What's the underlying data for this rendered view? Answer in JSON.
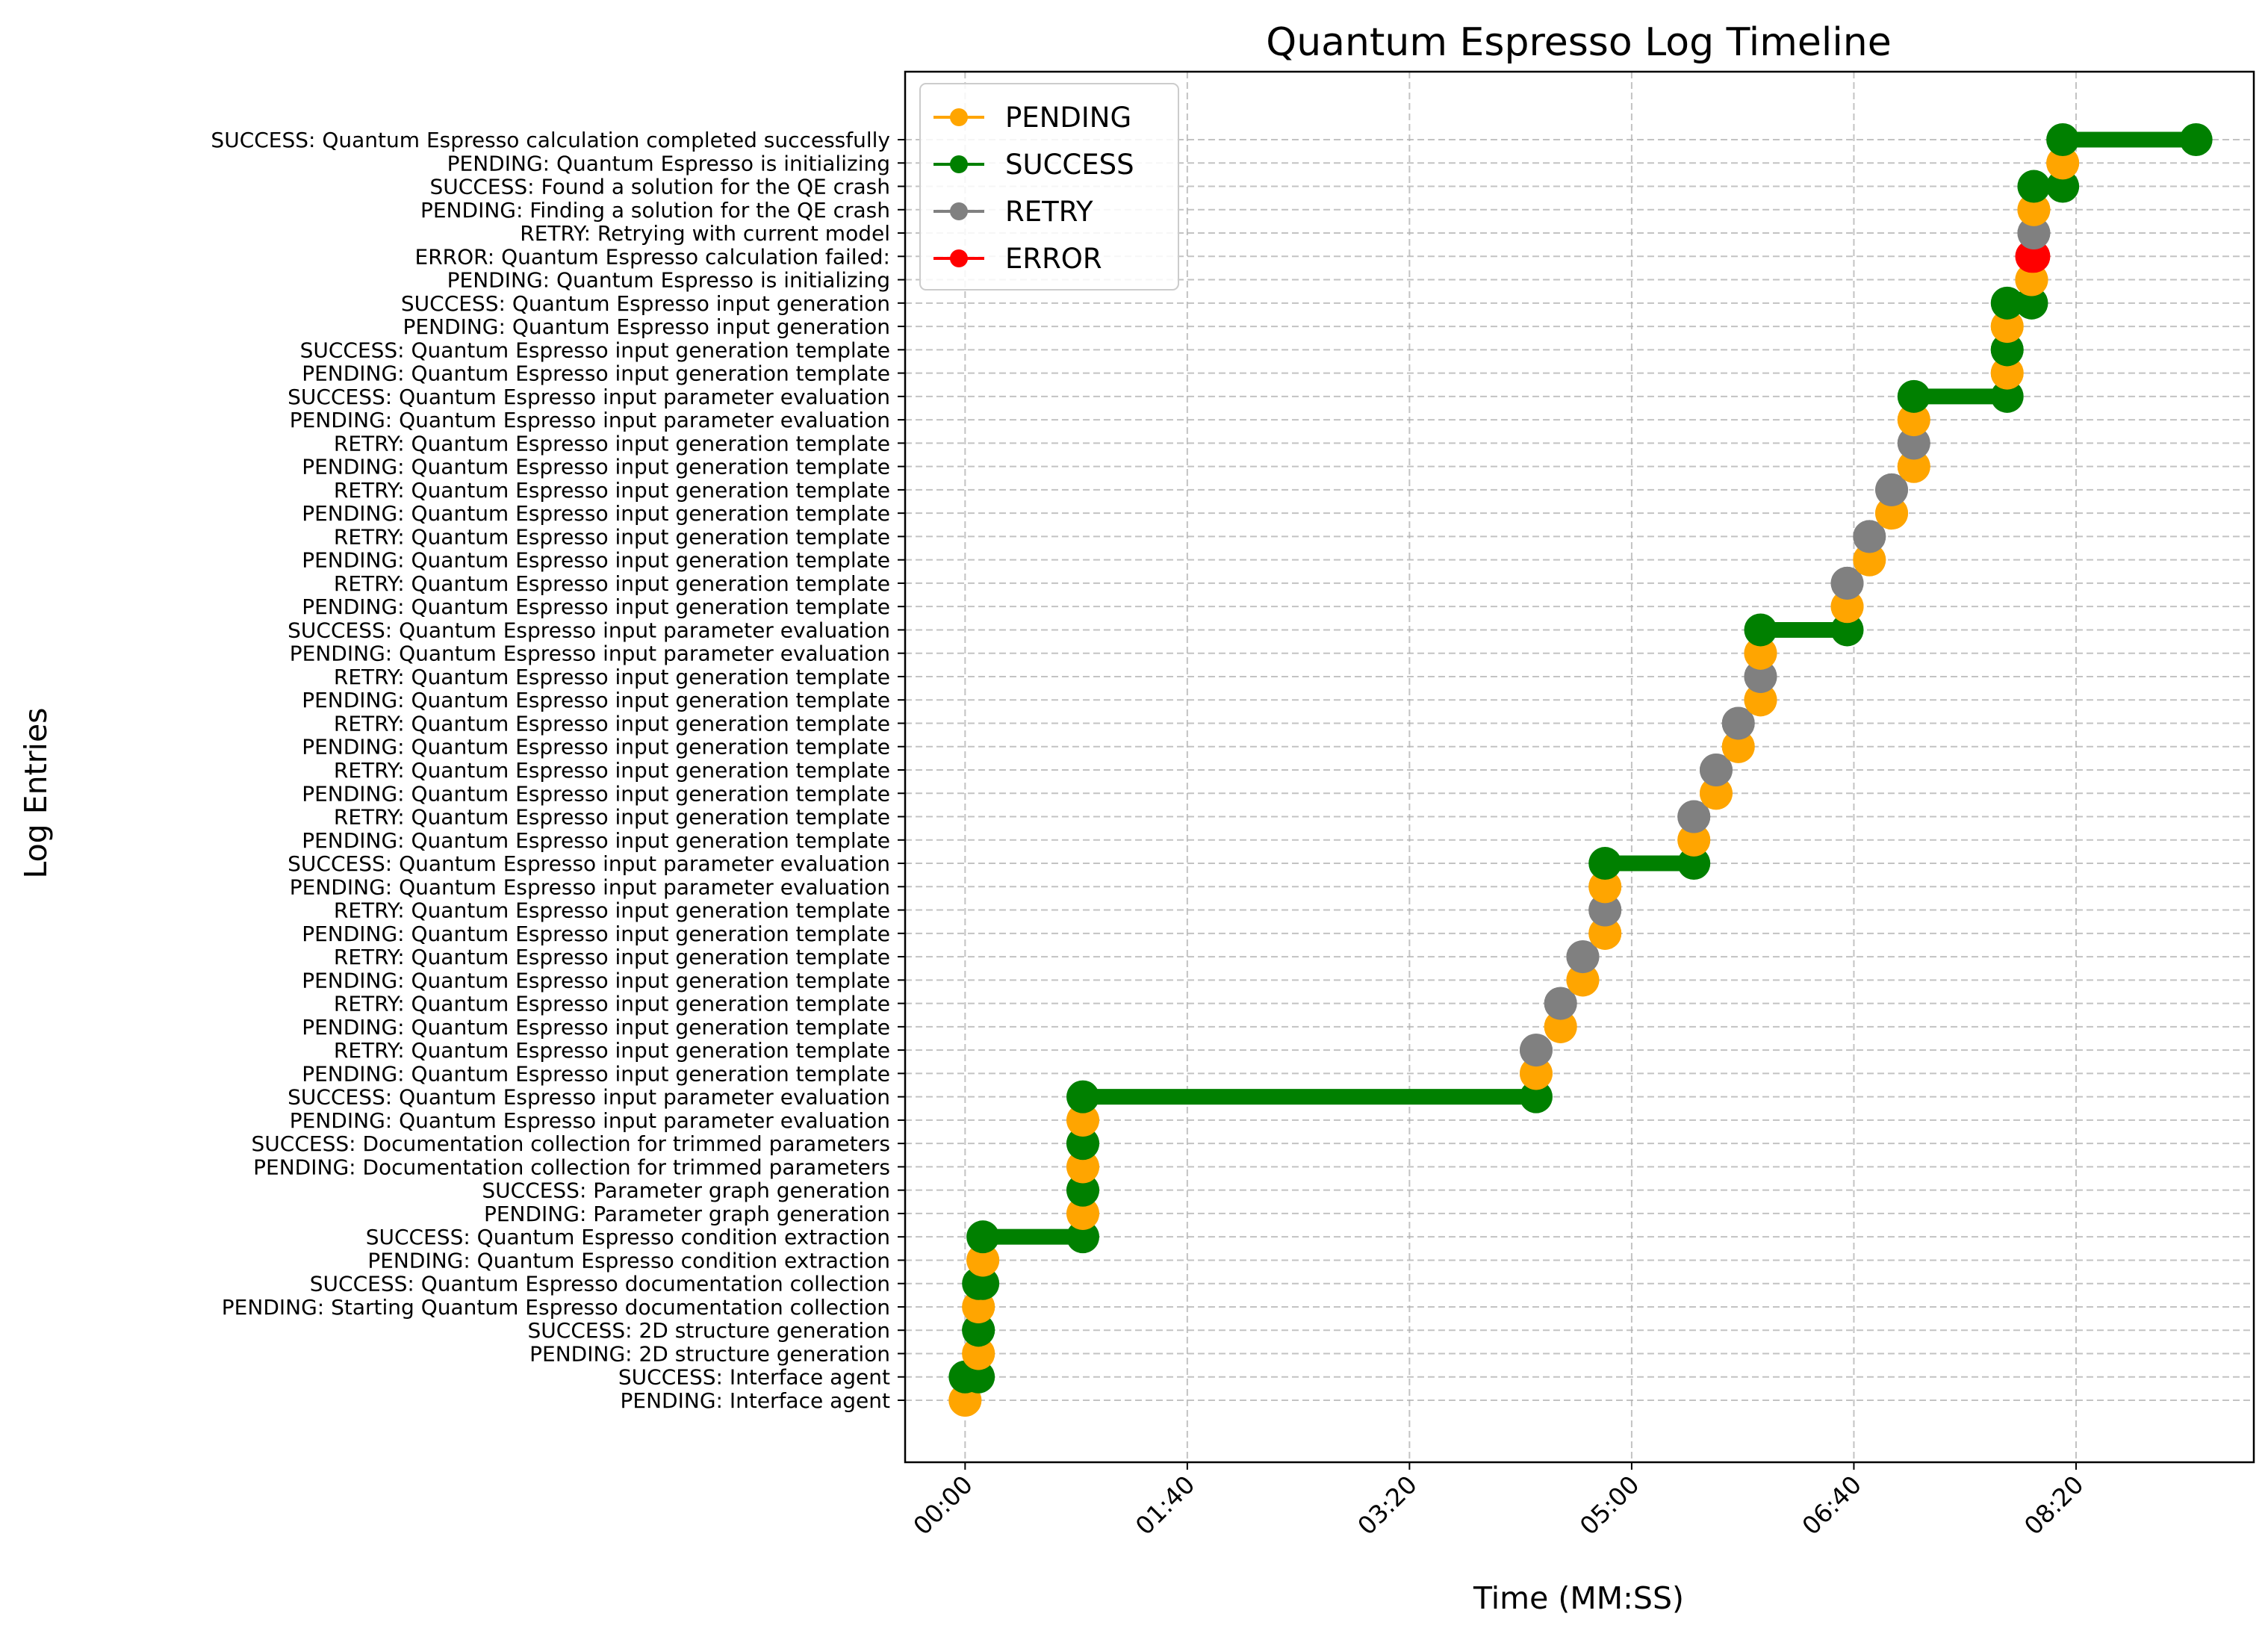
{
  "chart_data": {
    "type": "line",
    "title": "Quantum Espresso Log Timeline",
    "xlabel": "Time (MM:SS)",
    "ylabel": "Log Entries",
    "xlim": [
      -27,
      580
    ],
    "x_ticks": [
      {
        "value": 0,
        "label": "00:00"
      },
      {
        "value": 100,
        "label": "01:40"
      },
      {
        "value": 200,
        "label": "03:20"
      },
      {
        "value": 300,
        "label": "05:00"
      },
      {
        "value": 400,
        "label": "06:40"
      },
      {
        "value": 500,
        "label": "08:20"
      }
    ],
    "grid": true,
    "legend_position": "top-left",
    "statuses": [
      "PENDING",
      "SUCCESS",
      "RETRY",
      "ERROR"
    ],
    "colors": {
      "PENDING": "#ffa500",
      "SUCCESS": "#008000",
      "RETRY": "#808080",
      "ERROR": "#ff0000"
    },
    "legend": [
      {
        "label": "PENDING",
        "color": "#ffa500"
      },
      {
        "label": "SUCCESS",
        "color": "#008000"
      },
      {
        "label": "RETRY",
        "color": "#808080"
      },
      {
        "label": "ERROR",
        "color": "#ff0000"
      }
    ],
    "entries": [
      {
        "label": "PENDING: Interface agent",
        "status": "PENDING",
        "start": 0,
        "end": 0
      },
      {
        "label": "SUCCESS: Interface agent",
        "status": "SUCCESS",
        "start": 0,
        "end": 6
      },
      {
        "label": "PENDING: 2D structure generation",
        "status": "PENDING",
        "start": 6,
        "end": 6
      },
      {
        "label": "SUCCESS: 2D structure generation",
        "status": "SUCCESS",
        "start": 6,
        "end": 6
      },
      {
        "label": "PENDING: Starting Quantum Espresso documentation collection",
        "status": "PENDING",
        "start": 6,
        "end": 6
      },
      {
        "label": "SUCCESS: Quantum Espresso documentation collection",
        "status": "SUCCESS",
        "start": 6,
        "end": 8
      },
      {
        "label": "PENDING: Quantum Espresso condition extraction",
        "status": "PENDING",
        "start": 8,
        "end": 8
      },
      {
        "label": "SUCCESS: Quantum Espresso condition extraction",
        "status": "SUCCESS",
        "start": 8,
        "end": 53
      },
      {
        "label": "PENDING: Parameter graph generation",
        "status": "PENDING",
        "start": 53,
        "end": 53
      },
      {
        "label": "SUCCESS: Parameter graph generation",
        "status": "SUCCESS",
        "start": 53,
        "end": 53
      },
      {
        "label": "PENDING: Documentation collection for trimmed parameters",
        "status": "PENDING",
        "start": 53,
        "end": 53
      },
      {
        "label": "SUCCESS: Documentation collection for trimmed parameters",
        "status": "SUCCESS",
        "start": 53,
        "end": 53
      },
      {
        "label": "PENDING: Quantum Espresso input parameter evaluation",
        "status": "PENDING",
        "start": 53,
        "end": 53
      },
      {
        "label": "SUCCESS: Quantum Espresso input parameter evaluation",
        "status": "SUCCESS",
        "start": 53,
        "end": 257
      },
      {
        "label": "PENDING: Quantum Espresso input generation template",
        "status": "PENDING",
        "start": 257,
        "end": 257
      },
      {
        "label": "RETRY: Quantum Espresso input generation template",
        "status": "RETRY",
        "start": 257,
        "end": 257
      },
      {
        "label": "PENDING: Quantum Espresso input generation template",
        "status": "PENDING",
        "start": 268,
        "end": 268
      },
      {
        "label": "RETRY: Quantum Espresso input generation template",
        "status": "RETRY",
        "start": 268,
        "end": 268
      },
      {
        "label": "PENDING: Quantum Espresso input generation template",
        "status": "PENDING",
        "start": 278,
        "end": 278
      },
      {
        "label": "RETRY: Quantum Espresso input generation template",
        "status": "RETRY",
        "start": 278,
        "end": 278
      },
      {
        "label": "PENDING: Quantum Espresso input generation template",
        "status": "PENDING",
        "start": 288,
        "end": 288
      },
      {
        "label": "RETRY: Quantum Espresso input generation template",
        "status": "RETRY",
        "start": 288,
        "end": 288
      },
      {
        "label": "PENDING: Quantum Espresso input parameter evaluation",
        "status": "PENDING",
        "start": 288,
        "end": 288
      },
      {
        "label": "SUCCESS: Quantum Espresso input parameter evaluation",
        "status": "SUCCESS",
        "start": 288,
        "end": 328
      },
      {
        "label": "PENDING: Quantum Espresso input generation template",
        "status": "PENDING",
        "start": 328,
        "end": 328
      },
      {
        "label": "RETRY: Quantum Espresso input generation template",
        "status": "RETRY",
        "start": 328,
        "end": 328
      },
      {
        "label": "PENDING: Quantum Espresso input generation template",
        "status": "PENDING",
        "start": 338,
        "end": 338
      },
      {
        "label": "RETRY: Quantum Espresso input generation template",
        "status": "RETRY",
        "start": 338,
        "end": 338
      },
      {
        "label": "PENDING: Quantum Espresso input generation template",
        "status": "PENDING",
        "start": 348,
        "end": 348
      },
      {
        "label": "RETRY: Quantum Espresso input generation template",
        "status": "RETRY",
        "start": 348,
        "end": 348
      },
      {
        "label": "PENDING: Quantum Espresso input generation template",
        "status": "PENDING",
        "start": 358,
        "end": 358
      },
      {
        "label": "RETRY: Quantum Espresso input generation template",
        "status": "RETRY",
        "start": 358,
        "end": 358
      },
      {
        "label": "PENDING: Quantum Espresso input parameter evaluation",
        "status": "PENDING",
        "start": 358,
        "end": 358
      },
      {
        "label": "SUCCESS: Quantum Espresso input parameter evaluation",
        "status": "SUCCESS",
        "start": 358,
        "end": 397
      },
      {
        "label": "PENDING: Quantum Espresso input generation template",
        "status": "PENDING",
        "start": 397,
        "end": 397
      },
      {
        "label": "RETRY: Quantum Espresso input generation template",
        "status": "RETRY",
        "start": 397,
        "end": 397
      },
      {
        "label": "PENDING: Quantum Espresso input generation template",
        "status": "PENDING",
        "start": 407,
        "end": 407
      },
      {
        "label": "RETRY: Quantum Espresso input generation template",
        "status": "RETRY",
        "start": 407,
        "end": 407
      },
      {
        "label": "PENDING: Quantum Espresso input generation template",
        "status": "PENDING",
        "start": 417,
        "end": 417
      },
      {
        "label": "RETRY: Quantum Espresso input generation template",
        "status": "RETRY",
        "start": 417,
        "end": 417
      },
      {
        "label": "PENDING: Quantum Espresso input generation template",
        "status": "PENDING",
        "start": 427,
        "end": 427
      },
      {
        "label": "RETRY: Quantum Espresso input generation template",
        "status": "RETRY",
        "start": 427,
        "end": 427
      },
      {
        "label": "PENDING: Quantum Espresso input parameter evaluation",
        "status": "PENDING",
        "start": 427,
        "end": 427
      },
      {
        "label": "SUCCESS: Quantum Espresso input parameter evaluation",
        "status": "SUCCESS",
        "start": 427,
        "end": 469
      },
      {
        "label": "PENDING: Quantum Espresso input generation template",
        "status": "PENDING",
        "start": 469,
        "end": 469
      },
      {
        "label": "SUCCESS: Quantum Espresso input generation template",
        "status": "SUCCESS",
        "start": 469,
        "end": 469
      },
      {
        "label": "PENDING: Quantum Espresso input generation",
        "status": "PENDING",
        "start": 469,
        "end": 469
      },
      {
        "label": "SUCCESS: Quantum Espresso input generation",
        "status": "SUCCESS",
        "start": 469,
        "end": 480
      },
      {
        "label": "PENDING: Quantum Espresso is initializing",
        "status": "PENDING",
        "start": 480,
        "end": 480
      },
      {
        "label": "ERROR: Quantum Espresso calculation failed: ",
        "status": "ERROR",
        "start": 480,
        "end": 481
      },
      {
        "label": "RETRY: Retrying with current model",
        "status": "RETRY",
        "start": 481,
        "end": 481
      },
      {
        "label": "PENDING: Finding a solution for the QE crash",
        "status": "PENDING",
        "start": 481,
        "end": 481
      },
      {
        "label": "SUCCESS: Found a solution for the QE crash",
        "status": "SUCCESS",
        "start": 481,
        "end": 494
      },
      {
        "label": "PENDING: Quantum Espresso is initializing",
        "status": "PENDING",
        "start": 494,
        "end": 494
      },
      {
        "label": "SUCCESS: Quantum Espresso calculation completed successfully",
        "status": "SUCCESS",
        "start": 494,
        "end": 554
      }
    ]
  }
}
